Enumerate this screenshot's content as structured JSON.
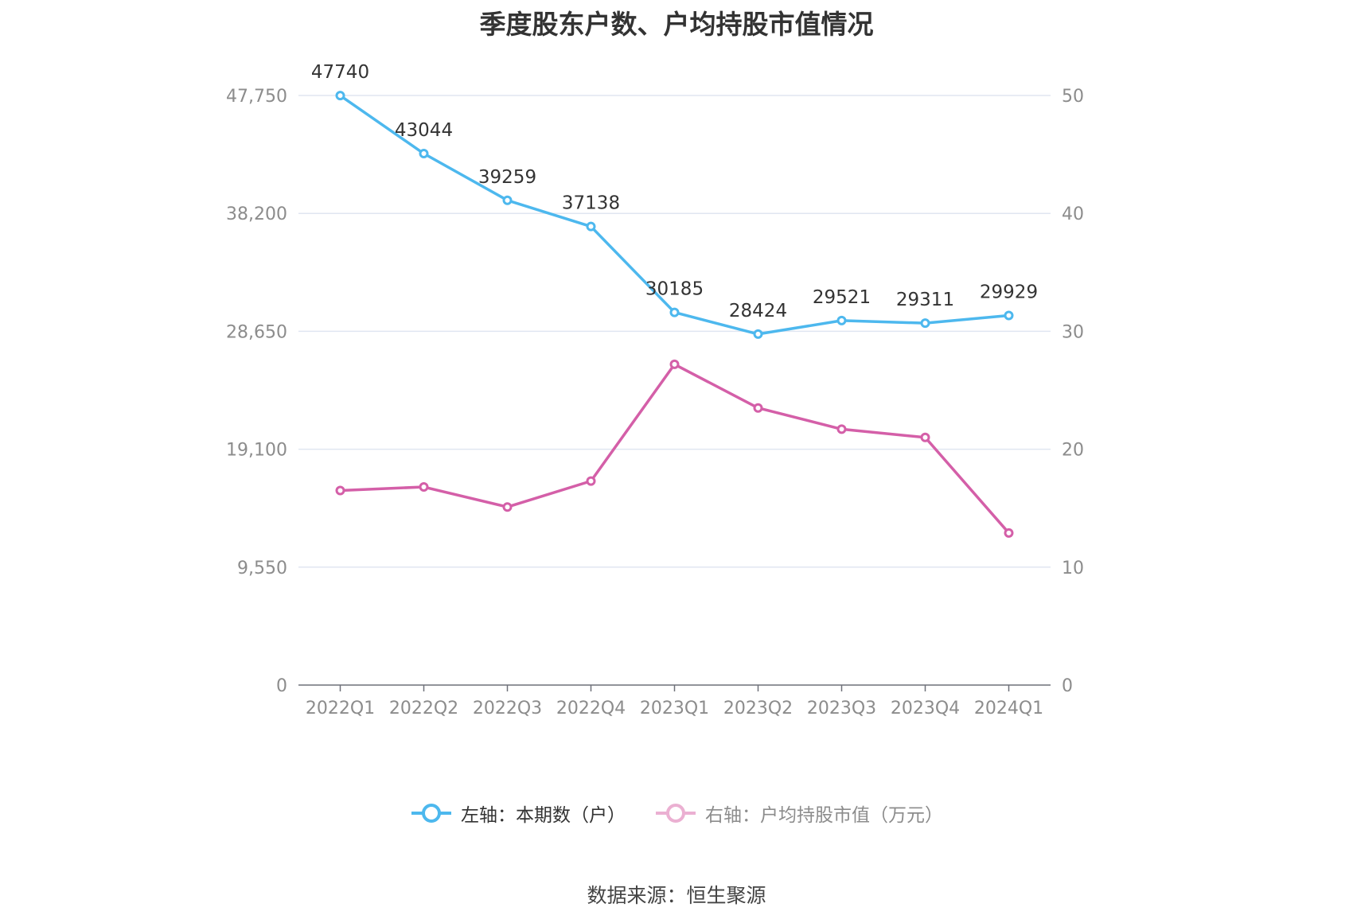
{
  "chart_data": {
    "type": "line",
    "title": "季度股东户数、户均持股市值情况",
    "categories": [
      "2022Q1",
      "2022Q2",
      "2022Q3",
      "2022Q4",
      "2023Q1",
      "2023Q2",
      "2023Q3",
      "2023Q4",
      "2024Q1"
    ],
    "left_axis": {
      "ylim": [
        0,
        47750
      ],
      "ticks": [
        "0",
        "9,550",
        "19,100",
        "28,650",
        "38,200",
        "47,750"
      ],
      "tick_values": [
        0,
        9550,
        19100,
        28650,
        38200,
        47750
      ]
    },
    "right_axis": {
      "ylim": [
        0,
        50
      ],
      "ticks": [
        "0",
        "10",
        "20",
        "30",
        "40",
        "50"
      ],
      "tick_values": [
        0,
        10,
        20,
        30,
        40,
        50
      ]
    },
    "series": [
      {
        "name": "左轴：本期数（户）",
        "axis": "left",
        "color": "#4db8ee",
        "values": [
          47740,
          43044,
          39259,
          37138,
          30185,
          28424,
          29521,
          29311,
          29929
        ],
        "labels": [
          "47740",
          "43044",
          "39259",
          "37138",
          "30185",
          "28424",
          "29521",
          "29311",
          "29929"
        ]
      },
      {
        "name": "右轴：户均持股市值（万元）",
        "axis": "right",
        "color": "#d45fa8",
        "values": [
          16.5,
          16.8,
          15.1,
          17.3,
          27.2,
          23.5,
          21.7,
          21.0,
          12.9
        ]
      }
    ],
    "grid": true,
    "legend_position": "bottom"
  },
  "source": "数据来源：恒生聚源"
}
